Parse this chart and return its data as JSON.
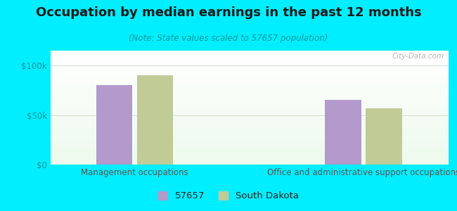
{
  "title": "Occupation by median earnings in the past 12 months",
  "subtitle": "(Note: State values scaled to 57657 population)",
  "categories": [
    "Management occupations",
    "Office and administrative support occupations"
  ],
  "values_57657": [
    80000,
    65000
  ],
  "values_sd": [
    90000,
    57000
  ],
  "bar_color_57657": "#b399cc",
  "bar_color_sd": "#c0cb96",
  "background_outer": "#00eeff",
  "yticks": [
    0,
    50000,
    100000
  ],
  "ytick_labels": [
    "$0",
    "$50k",
    "$100k"
  ],
  "ylim": [
    0,
    115000
  ],
  "legend_labels": [
    "57657",
    "South Dakota"
  ],
  "watermark": "City-Data.com",
  "title_fontsize": 13,
  "subtitle_fontsize": 8.5,
  "tick_fontsize": 8.5,
  "xlabel_fontsize": 8.5,
  "title_color": "#1a1a1a",
  "subtitle_color": "#009999",
  "tick_color": "#009999",
  "xlabel_color": "#555555"
}
